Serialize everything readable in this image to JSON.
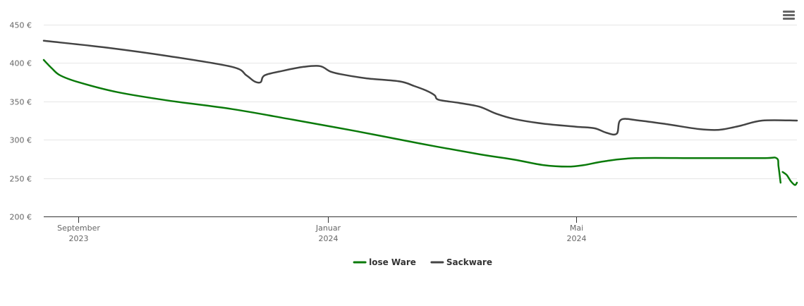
{
  "chart_data": {
    "type": "line",
    "y_unit": "€",
    "ylim": [
      200,
      450
    ],
    "y_ticks": [
      {
        "value": 200,
        "label": "200 €"
      },
      {
        "value": 250,
        "label": "250 €"
      },
      {
        "value": 300,
        "label": "300 €"
      },
      {
        "value": 350,
        "label": "350 €"
      },
      {
        "value": 400,
        "label": "400 €"
      },
      {
        "value": 450,
        "label": "450 €"
      }
    ],
    "xlim": [
      "2023-08-15",
      "2024-08-17"
    ],
    "x_ticks": [
      {
        "date": "2023-09-01",
        "label": "September",
        "sublabel": "2023"
      },
      {
        "date": "2024-01-01",
        "label": "Januar",
        "sublabel": "2024"
      },
      {
        "date": "2024-05-01",
        "label": "Mai",
        "sublabel": "2024"
      }
    ],
    "grid": true,
    "legend_position": "bottom-center",
    "series": [
      {
        "name": "lose Ware",
        "color": "#0a7a0a",
        "points": [
          [
            "2023-08-15",
            404
          ],
          [
            "2023-08-19",
            393
          ],
          [
            "2023-08-23",
            384
          ],
          [
            "2023-09-01",
            375
          ],
          [
            "2023-09-20",
            362
          ],
          [
            "2023-10-15",
            351
          ],
          [
            "2023-11-15",
            340
          ],
          [
            "2023-12-15",
            326
          ],
          [
            "2024-01-15",
            311
          ],
          [
            "2024-02-15",
            295
          ],
          [
            "2024-03-15",
            281
          ],
          [
            "2024-04-01",
            274
          ],
          [
            "2024-04-15",
            267
          ],
          [
            "2024-04-27",
            265
          ],
          [
            "2024-05-05",
            267
          ],
          [
            "2024-05-15",
            272
          ],
          [
            "2024-05-30",
            276
          ],
          [
            "2024-06-30",
            276
          ],
          [
            "2024-07-31",
            276
          ],
          [
            "2024-08-07",
            276
          ],
          [
            "2024-08-08",
            265
          ],
          [
            "2024-08-09",
            244
          ],
          null,
          [
            "2024-08-10",
            258
          ],
          [
            "2024-08-12",
            254
          ],
          [
            "2024-08-14",
            246
          ],
          [
            "2024-08-16",
            241
          ],
          [
            "2024-08-17",
            244
          ]
        ]
      },
      {
        "name": "Sackware",
        "color": "#444444",
        "points": [
          [
            "2023-08-15",
            429
          ],
          [
            "2023-09-15",
            420
          ],
          [
            "2023-10-15",
            409
          ],
          [
            "2023-11-15",
            395
          ],
          [
            "2023-11-22",
            384
          ],
          [
            "2023-11-26",
            376
          ],
          [
            "2023-11-29",
            375
          ],
          [
            "2023-12-01",
            384
          ],
          [
            "2023-12-10",
            390
          ],
          [
            "2023-12-20",
            395
          ],
          [
            "2023-12-28",
            396
          ],
          [
            "2024-01-02",
            389
          ],
          [
            "2024-01-08",
            385
          ],
          [
            "2024-01-20",
            380
          ],
          [
            "2024-02-05",
            376
          ],
          [
            "2024-02-12",
            370
          ],
          [
            "2024-02-18",
            364
          ],
          [
            "2024-02-22",
            358
          ],
          [
            "2024-02-24",
            352
          ],
          [
            "2024-03-05",
            348
          ],
          [
            "2024-03-15",
            343
          ],
          [
            "2024-03-23",
            334
          ],
          [
            "2024-04-01",
            327
          ],
          [
            "2024-04-15",
            321
          ],
          [
            "2024-05-01",
            317
          ],
          [
            "2024-05-10",
            315
          ],
          [
            "2024-05-16",
            309
          ],
          [
            "2024-05-21",
            308
          ],
          [
            "2024-05-23",
            326
          ],
          [
            "2024-06-01",
            325
          ],
          [
            "2024-06-15",
            320
          ],
          [
            "2024-06-30",
            314
          ],
          [
            "2024-07-10",
            313
          ],
          [
            "2024-07-20",
            318
          ],
          [
            "2024-07-31",
            325
          ],
          [
            "2024-08-17",
            325
          ]
        ]
      }
    ]
  }
}
